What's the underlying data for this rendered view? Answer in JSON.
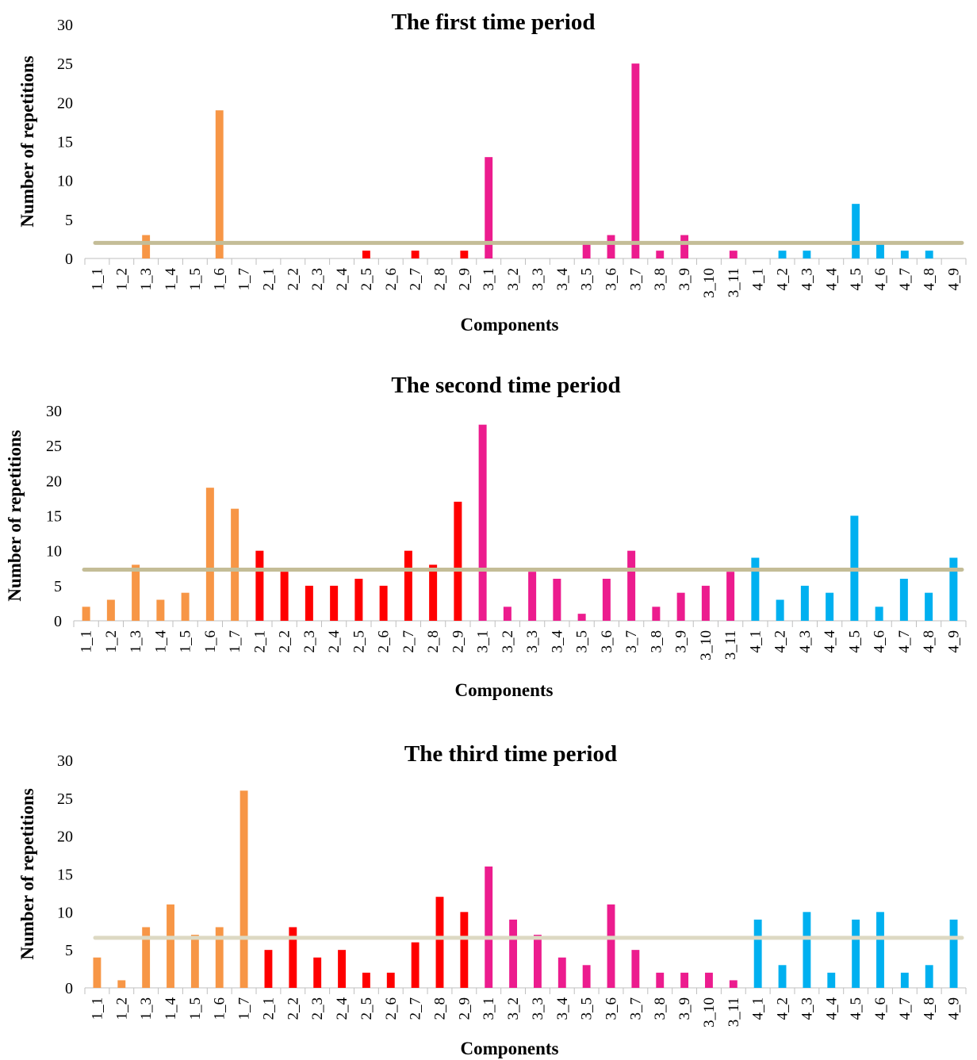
{
  "categories": [
    "1_1",
    "1_2",
    "1_3",
    "1_4",
    "1_5",
    "1_6",
    "1_7",
    "2_1",
    "2_2",
    "2_3",
    "2_4",
    "2_5",
    "2_6",
    "2_7",
    "2_8",
    "2_9",
    "3_1",
    "3_2",
    "3_3",
    "3_4",
    "3_5",
    "3_6",
    "3_7",
    "3_8",
    "3_9",
    "3_10",
    "3_11",
    "4_1",
    "4_2",
    "4_3",
    "4_4",
    "4_5",
    "4_6",
    "4_7",
    "4_8",
    "4_9"
  ],
  "group_colors": {
    "1": "#F79646",
    "2": "#FF0000",
    "3": "#EC1C8E",
    "4": "#00B0F0"
  },
  "mean_line_colors": [
    "#C4BD97",
    "#C4BD97",
    "#DDD9C3"
  ],
  "chart_data": [
    {
      "type": "bar",
      "title": "The first time period",
      "xlabel": "Components",
      "ylabel": "Number of repetitions",
      "ylim": [
        0,
        30
      ],
      "yticks": [
        0,
        5,
        10,
        15,
        20,
        25,
        30
      ],
      "grid": false,
      "values": [
        0,
        0,
        3,
        0,
        0,
        19,
        0,
        0,
        0,
        0,
        0,
        1,
        0,
        1,
        0,
        1,
        13,
        0,
        0,
        0,
        2,
        3,
        25,
        1,
        3,
        0,
        1,
        0,
        1,
        1,
        0,
        7,
        2,
        1,
        1,
        0
      ],
      "mean_line": 2
    },
    {
      "type": "bar",
      "title": "The second time period",
      "xlabel": "Components",
      "ylabel": "Number of repetitions",
      "ylim": [
        0,
        30
      ],
      "yticks": [
        0,
        5,
        10,
        15,
        20,
        25,
        30
      ],
      "grid": false,
      "values": [
        2,
        3,
        8,
        3,
        4,
        19,
        16,
        10,
        7,
        5,
        5,
        6,
        5,
        10,
        8,
        17,
        28,
        2,
        7,
        6,
        1,
        6,
        10,
        2,
        4,
        5,
        7,
        9,
        3,
        5,
        4,
        15,
        2,
        6,
        4,
        9
      ],
      "mean_line": 7.3
    },
    {
      "type": "bar",
      "title": "The third time period",
      "xlabel": "Components",
      "ylabel": "Number of repetitions",
      "ylim": [
        0,
        30
      ],
      "yticks": [
        0,
        5,
        10,
        15,
        20,
        25,
        30
      ],
      "grid": false,
      "values": [
        4,
        1,
        8,
        11,
        7,
        8,
        26,
        5,
        8,
        4,
        5,
        2,
        2,
        6,
        12,
        10,
        16,
        9,
        7,
        4,
        3,
        11,
        5,
        2,
        2,
        2,
        1,
        9,
        3,
        10,
        2,
        9,
        10,
        2,
        3,
        9
      ],
      "mean_line": 6.6
    }
  ]
}
